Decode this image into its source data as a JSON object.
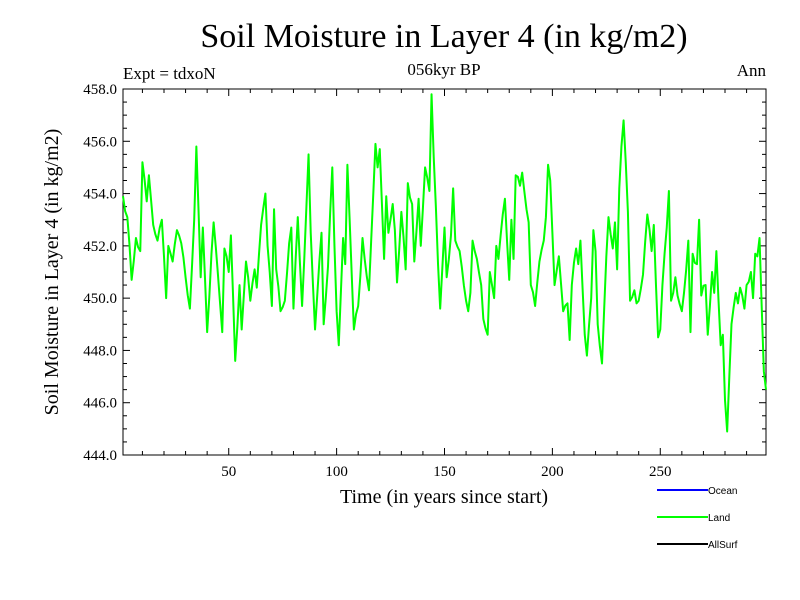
{
  "chart_data": {
    "type": "line",
    "title": "Soil Moisture in Layer 4 (in kg/m2)",
    "subtitle": "056kyr BP",
    "left_label": "Expt = tdxoN",
    "right_label": "Ann",
    "xlabel": "Time (in years since start)",
    "ylabel": "Soil Moisture in Layer 4 (in kg/m2)",
    "xlim": [
      1,
      299
    ],
    "ylim": [
      444.0,
      458.0
    ],
    "xticks": [
      50,
      100,
      150,
      200,
      250
    ],
    "yticks": [
      "444.0",
      "446.0",
      "448.0",
      "450.0",
      "452.0",
      "454.0",
      "456.0",
      "458.0"
    ],
    "grid": false,
    "legend_position": "bottom-right",
    "series": [
      {
        "name": "Ocean",
        "color": "#0000ff",
        "values": []
      },
      {
        "name": "Land",
        "color": "#00ff00",
        "keypoints": [
          [
            1,
            453.9
          ],
          [
            3,
            453.1
          ],
          [
            5,
            450.7
          ],
          [
            7,
            452.3
          ],
          [
            9,
            451.8
          ],
          [
            10,
            455.2
          ],
          [
            12,
            453.7
          ],
          [
            13,
            454.7
          ],
          [
            15,
            452.8
          ],
          [
            17,
            452.2
          ],
          [
            19,
            453.0
          ],
          [
            21,
            450.0
          ],
          [
            22,
            452.0
          ],
          [
            24,
            451.4
          ],
          [
            26,
            452.6
          ],
          [
            28,
            452.1
          ],
          [
            30,
            450.8
          ],
          [
            32,
            449.6
          ],
          [
            34,
            453.0
          ],
          [
            35,
            455.8
          ],
          [
            37,
            450.8
          ],
          [
            38,
            452.7
          ],
          [
            40,
            448.7
          ],
          [
            42,
            451.7
          ],
          [
            43,
            452.9
          ],
          [
            45,
            450.9
          ],
          [
            47,
            448.7
          ],
          [
            48,
            451.9
          ],
          [
            50,
            451.0
          ],
          [
            51,
            452.4
          ],
          [
            53,
            447.6
          ],
          [
            55,
            450.5
          ],
          [
            56,
            448.8
          ],
          [
            58,
            451.4
          ],
          [
            60,
            449.9
          ],
          [
            62,
            451.1
          ],
          [
            63,
            450.4
          ],
          [
            65,
            452.8
          ],
          [
            67,
            454.0
          ],
          [
            68,
            452.0
          ],
          [
            70,
            449.7
          ],
          [
            71,
            453.4
          ],
          [
            72,
            451.1
          ],
          [
            74,
            449.5
          ],
          [
            76,
            449.9
          ],
          [
            78,
            452.1
          ],
          [
            79,
            452.7
          ],
          [
            80,
            449.6
          ],
          [
            82,
            453.1
          ],
          [
            84,
            449.7
          ],
          [
            86,
            453.5
          ],
          [
            87,
            455.5
          ],
          [
            88,
            452.5
          ],
          [
            90,
            448.8
          ],
          [
            92,
            451.4
          ],
          [
            93,
            452.5
          ],
          [
            94,
            449.0
          ],
          [
            96,
            451.2
          ],
          [
            98,
            455.0
          ],
          [
            99,
            452.0
          ],
          [
            100,
            449.5
          ],
          [
            101,
            448.2
          ],
          [
            103,
            452.3
          ],
          [
            104,
            451.3
          ],
          [
            105,
            455.1
          ],
          [
            107,
            450.9
          ],
          [
            108,
            448.8
          ],
          [
            110,
            449.7
          ],
          [
            112,
            452.3
          ],
          [
            113,
            451.5
          ],
          [
            115,
            450.3
          ],
          [
            117,
            454.0
          ],
          [
            118,
            455.9
          ],
          [
            119,
            455.0
          ],
          [
            120,
            455.7
          ],
          [
            122,
            451.5
          ],
          [
            123,
            453.9
          ],
          [
            124,
            452.5
          ],
          [
            126,
            453.6
          ],
          [
            127,
            452.6
          ],
          [
            128,
            450.6
          ],
          [
            130,
            453.3
          ],
          [
            132,
            451.1
          ],
          [
            133,
            454.4
          ],
          [
            135,
            453.6
          ],
          [
            136,
            451.4
          ],
          [
            138,
            453.8
          ],
          [
            139,
            452.0
          ],
          [
            141,
            455.0
          ],
          [
            143,
            454.1
          ],
          [
            144,
            457.8
          ],
          [
            145,
            455.4
          ],
          [
            147,
            451.3
          ],
          [
            148,
            449.6
          ],
          [
            150,
            452.7
          ],
          [
            151,
            450.8
          ],
          [
            153,
            452.4
          ],
          [
            154,
            454.2
          ],
          [
            155,
            452.2
          ],
          [
            157,
            451.8
          ],
          [
            158,
            451.2
          ],
          [
            160,
            449.9
          ],
          [
            161,
            449.5
          ],
          [
            162,
            450.2
          ],
          [
            163,
            452.2
          ],
          [
            165,
            451.5
          ],
          [
            167,
            450.5
          ],
          [
            168,
            449.2
          ],
          [
            170,
            448.6
          ],
          [
            171,
            451.0
          ],
          [
            173,
            450.0
          ],
          [
            174,
            452.0
          ],
          [
            175,
            451.5
          ],
          [
            177,
            453.2
          ],
          [
            178,
            453.8
          ],
          [
            180,
            450.7
          ],
          [
            181,
            453.0
          ],
          [
            182,
            451.5
          ],
          [
            183,
            454.7
          ],
          [
            185,
            454.3
          ],
          [
            186,
            454.8
          ],
          [
            188,
            453.4
          ],
          [
            189,
            452.9
          ],
          [
            190,
            450.5
          ],
          [
            192,
            449.7
          ],
          [
            194,
            451.4
          ],
          [
            196,
            452.2
          ],
          [
            197,
            453.1
          ],
          [
            198,
            455.1
          ],
          [
            199,
            454.5
          ],
          [
            200,
            452.5
          ],
          [
            201,
            450.5
          ],
          [
            203,
            451.6
          ],
          [
            205,
            449.5
          ],
          [
            207,
            449.8
          ],
          [
            208,
            448.4
          ],
          [
            209,
            450.5
          ],
          [
            211,
            451.9
          ],
          [
            212,
            451.3
          ],
          [
            213,
            452.2
          ],
          [
            215,
            448.6
          ],
          [
            216,
            447.8
          ],
          [
            218,
            450.0
          ],
          [
            219,
            452.6
          ],
          [
            220,
            451.8
          ],
          [
            221,
            449.0
          ],
          [
            223,
            447.5
          ],
          [
            225,
            451.6
          ],
          [
            226,
            453.1
          ],
          [
            228,
            451.9
          ],
          [
            229,
            452.9
          ],
          [
            230,
            451.1
          ],
          [
            231,
            454.2
          ],
          [
            232,
            455.8
          ],
          [
            233,
            456.8
          ],
          [
            234,
            455.2
          ],
          [
            235,
            453.3
          ],
          [
            236,
            449.9
          ],
          [
            238,
            450.3
          ],
          [
            239,
            449.8
          ],
          [
            240,
            449.9
          ],
          [
            242,
            450.9
          ],
          [
            244,
            453.2
          ],
          [
            246,
            451.8
          ],
          [
            247,
            452.8
          ],
          [
            249,
            448.5
          ],
          [
            250,
            448.8
          ],
          [
            251,
            450.5
          ],
          [
            253,
            452.7
          ],
          [
            254,
            454.1
          ],
          [
            255,
            449.9
          ],
          [
            257,
            450.8
          ],
          [
            258,
            450.1
          ],
          [
            260,
            449.5
          ],
          [
            261,
            450.2
          ],
          [
            263,
            452.2
          ],
          [
            264,
            448.7
          ],
          [
            265,
            451.7
          ],
          [
            267,
            451.3
          ],
          [
            268,
            453.0
          ],
          [
            269,
            450.1
          ],
          [
            271,
            450.5
          ],
          [
            272,
            448.6
          ],
          [
            274,
            451.0
          ],
          [
            275,
            450.2
          ],
          [
            276,
            451.8
          ],
          [
            277,
            449.9
          ],
          [
            278,
            448.2
          ],
          [
            279,
            448.6
          ],
          [
            280,
            446.1
          ],
          [
            281,
            444.9
          ],
          [
            282,
            447.0
          ],
          [
            283,
            449.0
          ],
          [
            285,
            450.2
          ],
          [
            286,
            449.8
          ],
          [
            287,
            450.4
          ],
          [
            288,
            450.1
          ],
          [
            289,
            449.6
          ],
          [
            290,
            450.5
          ],
          [
            292,
            451.0
          ],
          [
            293,
            450.0
          ],
          [
            294,
            451.7
          ],
          [
            295,
            451.6
          ],
          [
            296,
            452.3
          ],
          [
            297,
            449.7
          ],
          [
            298,
            447.2
          ],
          [
            299,
            446.5
          ]
        ]
      },
      {
        "name": "AllSurf",
        "color": "#000000",
        "values": []
      }
    ]
  }
}
